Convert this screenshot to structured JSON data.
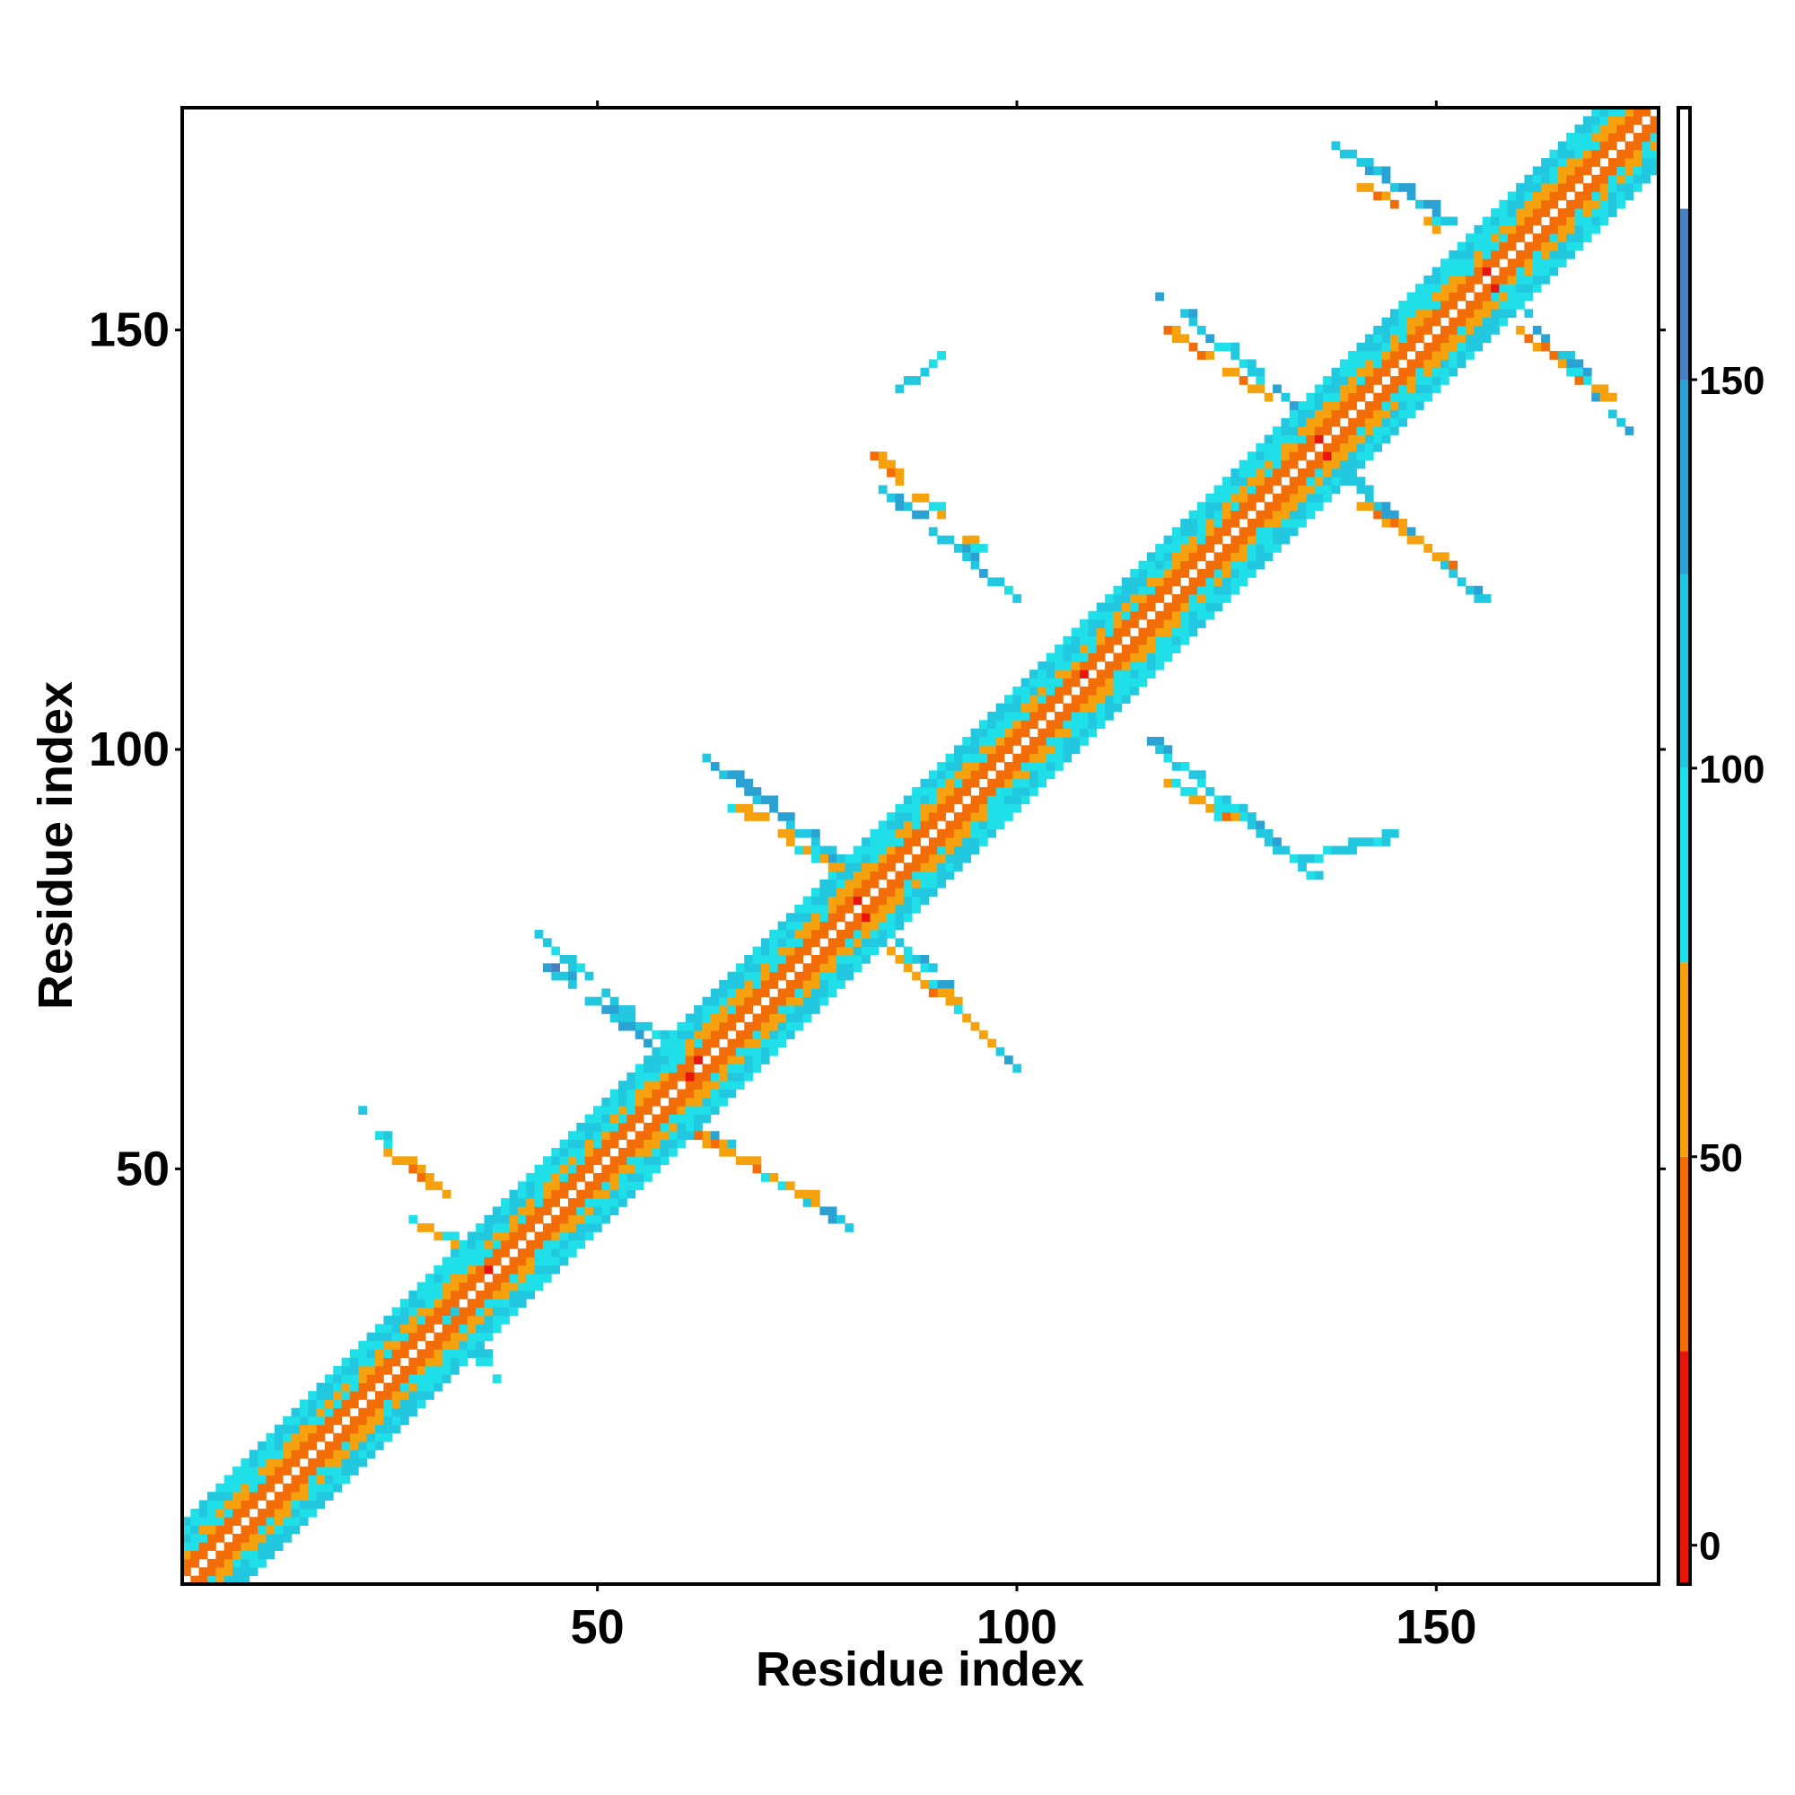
{
  "chart_data": {
    "type": "heatmap",
    "title": "",
    "xlabel": "Residue index",
    "ylabel": "Residue index",
    "xlim": [
      1,
      176
    ],
    "ylim": [
      1,
      176
    ],
    "x_ticks": [
      50,
      100,
      150
    ],
    "y_ticks": [
      50,
      100,
      150
    ],
    "grid": false,
    "legend": "colorbar-right",
    "colorbar": {
      "ticks": [
        0,
        50,
        100,
        150
      ],
      "range": [
        -5,
        185
      ],
      "bands": [
        {
          "from": -5,
          "to": 25,
          "color": "#e8150d"
        },
        {
          "from": 25,
          "to": 50,
          "color": "#f26c08"
        },
        {
          "from": 50,
          "to": 75,
          "color": "#f5a20e"
        },
        {
          "from": 75,
          "to": 100,
          "color": "#1fdfe8"
        },
        {
          "from": 100,
          "to": 125,
          "color": "#22c8e0"
        },
        {
          "from": 125,
          "to": 150,
          "color": "#2aa2d4"
        },
        {
          "from": 150,
          "to": 172,
          "color": "#4a7fbf"
        },
        {
          "from": 172,
          "to": 185,
          "color": "#ffffff"
        }
      ]
    },
    "diagonal_band": {
      "from": 1,
      "to": 176,
      "half_width": 7
    },
    "contact_segments": [
      {
        "x1": 30,
        "y1": 35,
        "x2": 38,
        "y2": 25,
        "value": 90
      },
      {
        "x1": 28,
        "y1": 44,
        "x2": 35,
        "y2": 40,
        "value": 70
      },
      {
        "x1": 25,
        "y1": 52,
        "x2": 32,
        "y2": 47,
        "value": 60
      },
      {
        "x1": 22,
        "y1": 57,
        "x2": 25,
        "y2": 53,
        "value": 100
      },
      {
        "x1": 43,
        "y1": 78,
        "x2": 60,
        "y2": 63,
        "value": 110
      },
      {
        "x1": 44,
        "y1": 74,
        "x2": 56,
        "y2": 65,
        "value": 130
      },
      {
        "x1": 60,
        "y1": 56,
        "x2": 80,
        "y2": 43,
        "value": 120
      },
      {
        "x1": 62,
        "y1": 54,
        "x2": 76,
        "y2": 46,
        "value": 60
      },
      {
        "x1": 63,
        "y1": 99,
        "x2": 81,
        "y2": 85,
        "value": 120
      },
      {
        "x1": 65,
        "y1": 94,
        "x2": 78,
        "y2": 86,
        "value": 70
      },
      {
        "x1": 82,
        "y1": 81,
        "x2": 100,
        "y2": 62,
        "value": 110
      },
      {
        "x1": 85,
        "y1": 76,
        "x2": 97,
        "y2": 65,
        "value": 60
      },
      {
        "x1": 84,
        "y1": 131,
        "x2": 100,
        "y2": 118,
        "value": 110
      },
      {
        "x1": 83,
        "y1": 135,
        "x2": 95,
        "y2": 124,
        "value": 60
      },
      {
        "x1": 86,
        "y1": 143,
        "x2": 91,
        "y2": 147,
        "value": 100
      },
      {
        "x1": 116,
        "y1": 101,
        "x2": 135,
        "y2": 85,
        "value": 110
      },
      {
        "x1": 118,
        "y1": 96,
        "x2": 128,
        "y2": 90,
        "value": 60
      },
      {
        "x1": 135,
        "y1": 87,
        "x2": 148,
        "y2": 91,
        "value": 100
      },
      {
        "x1": 117,
        "y1": 154,
        "x2": 137,
        "y2": 138,
        "value": 110
      },
      {
        "x1": 118,
        "y1": 150,
        "x2": 130,
        "y2": 142,
        "value": 60
      },
      {
        "x1": 137,
        "y1": 135,
        "x2": 155,
        "y2": 118,
        "value": 120
      },
      {
        "x1": 140,
        "y1": 130,
        "x2": 152,
        "y2": 122,
        "value": 60
      },
      {
        "x1": 138,
        "y1": 172,
        "x2": 156,
        "y2": 160,
        "value": 120
      },
      {
        "x1": 140,
        "y1": 168,
        "x2": 150,
        "y2": 162,
        "value": 60
      },
      {
        "x1": 157,
        "y1": 156,
        "x2": 173,
        "y2": 138,
        "value": 120
      },
      {
        "x1": 160,
        "y1": 150,
        "x2": 170,
        "y2": 142,
        "value": 60
      }
    ],
    "strong_contact_cells": [
      {
        "x": 61,
        "y": 61
      },
      {
        "x": 62,
        "y": 63
      },
      {
        "x": 81,
        "y": 82
      },
      {
        "x": 82,
        "y": 80
      },
      {
        "x": 136,
        "y": 137
      },
      {
        "x": 137,
        "y": 135
      },
      {
        "x": 156,
        "y": 157
      },
      {
        "x": 157,
        "y": 155
      },
      {
        "x": 37,
        "y": 38
      },
      {
        "x": 108,
        "y": 109
      }
    ]
  }
}
